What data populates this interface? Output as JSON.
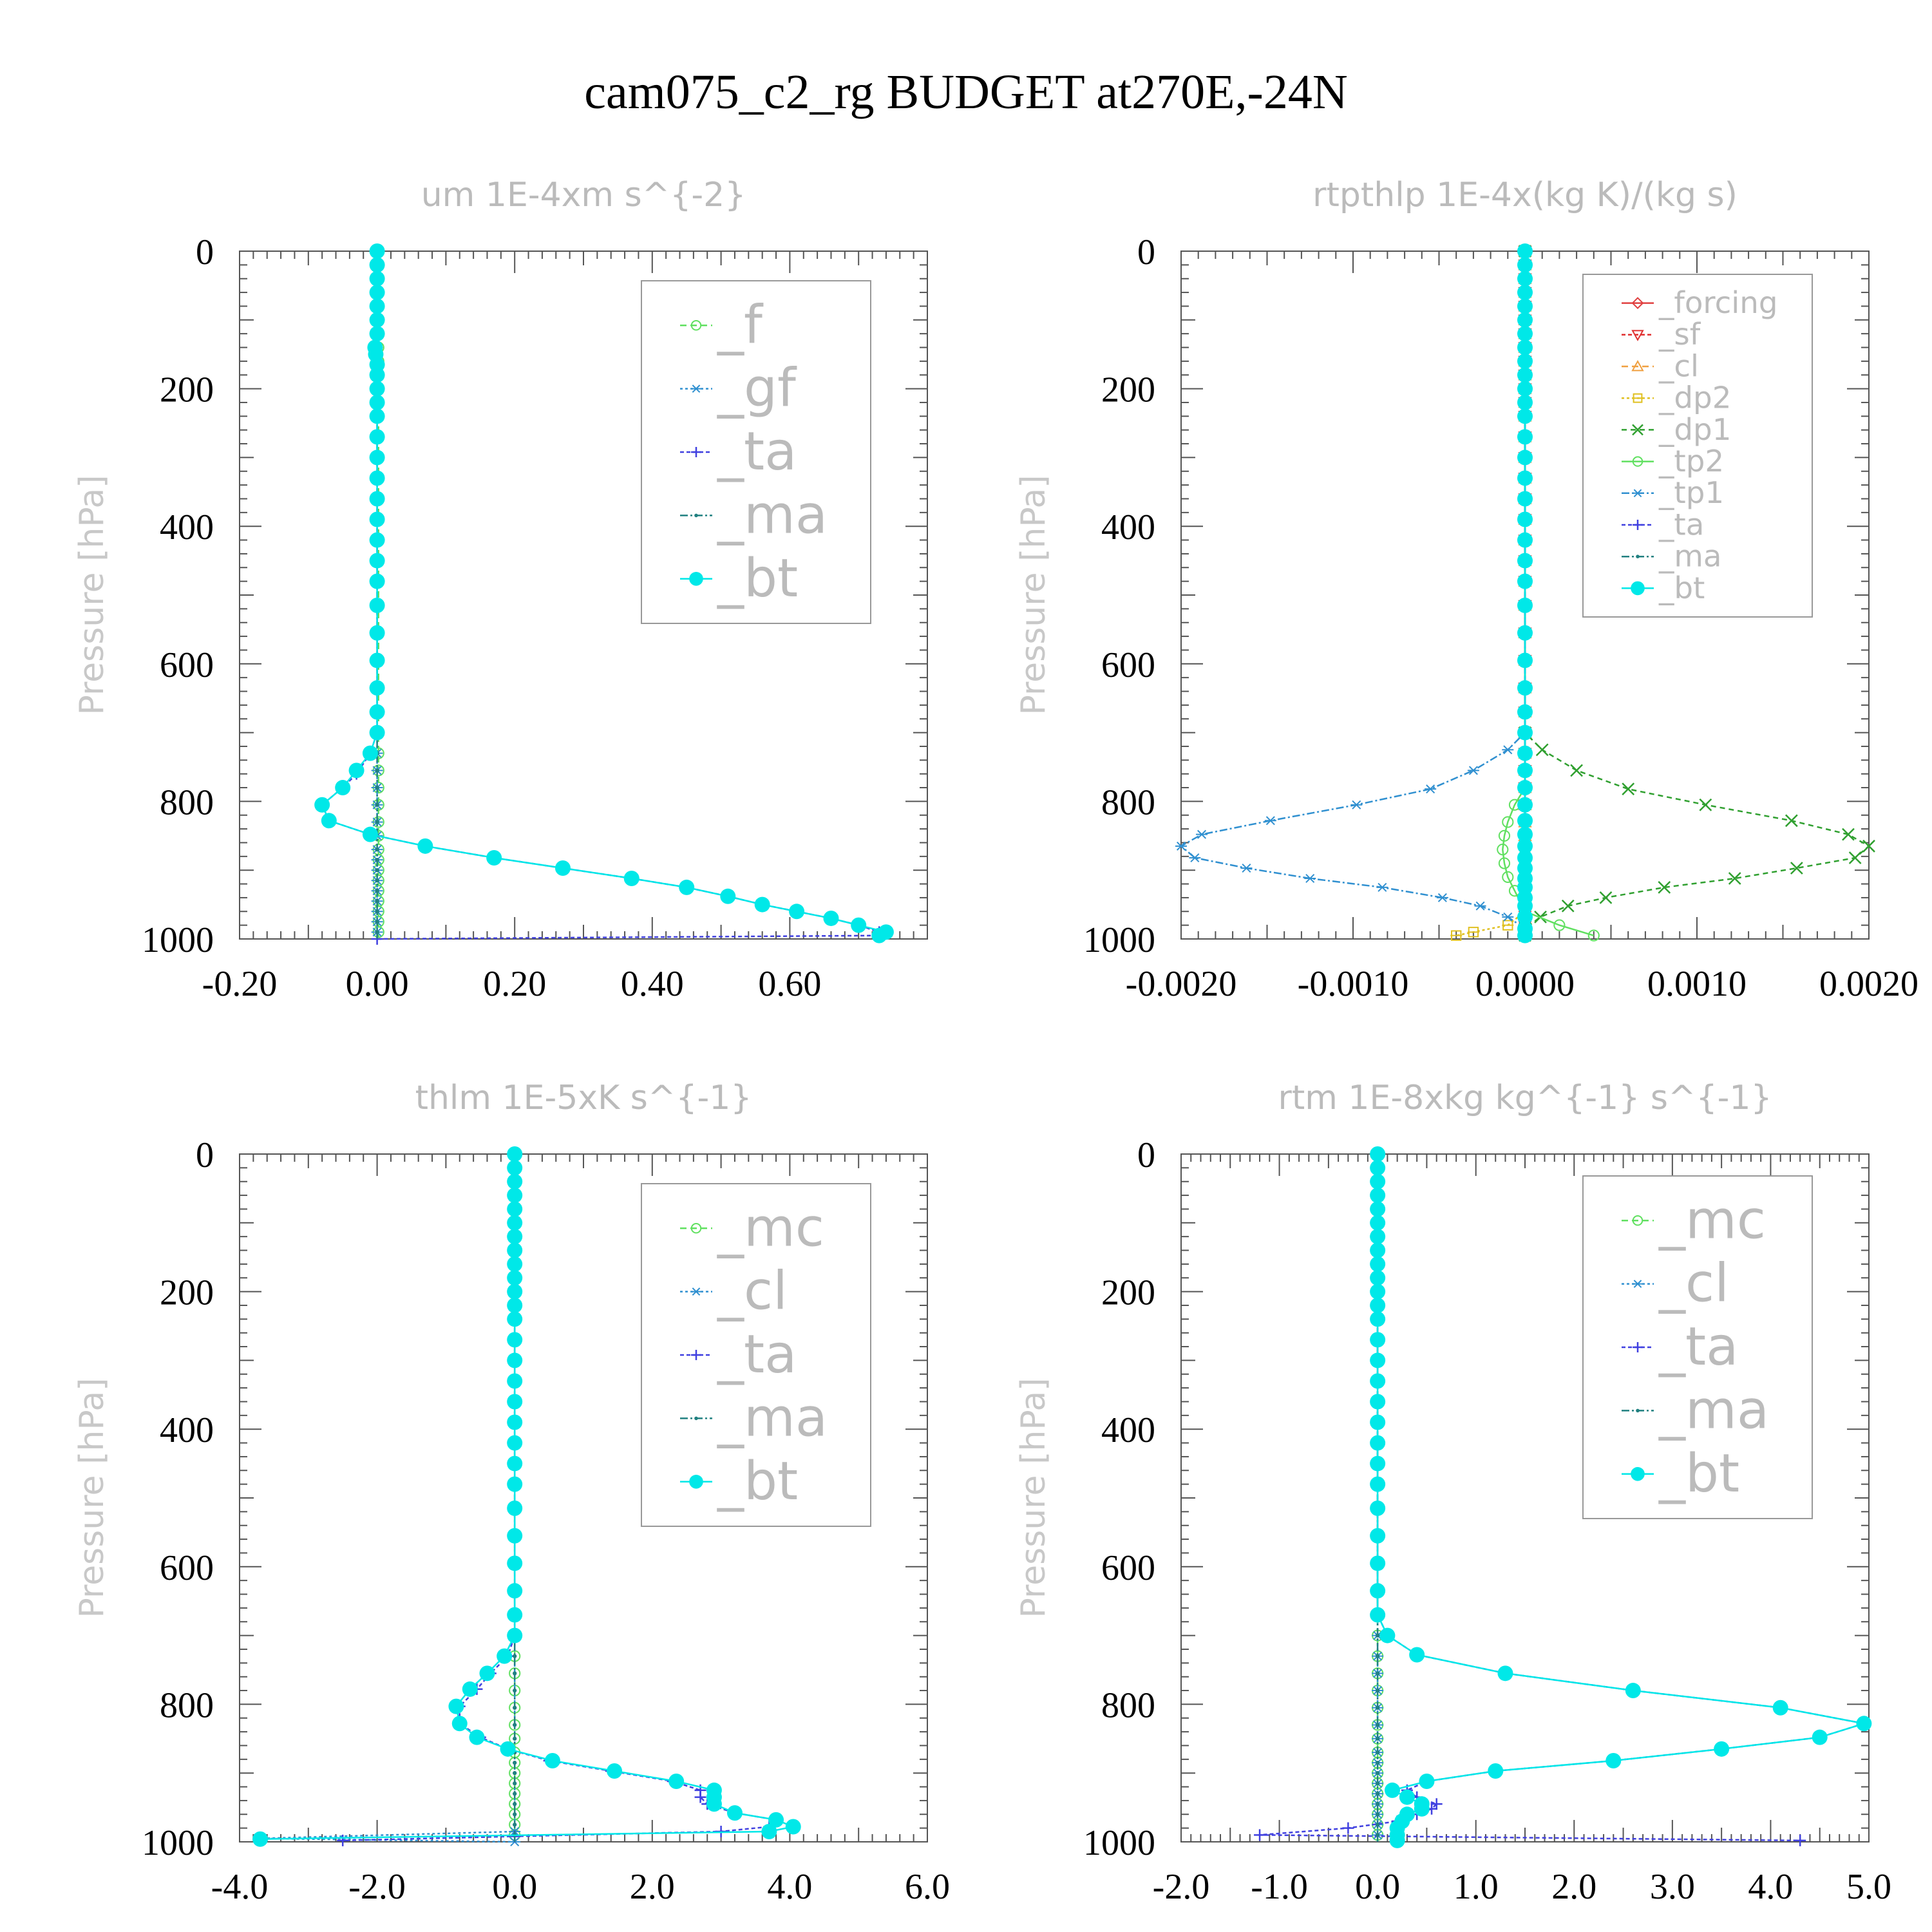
{
  "title": "cam075_c2_rg  BUDGET at270E,-24N",
  "colors": {
    "forcing": "#e04040",
    "sf": "#e03030",
    "cl_top": "#f0a040",
    "dp2": "#e0c020",
    "dp1": "#30a030",
    "tp2": "#60e060",
    "tp1": "#3090d0",
    "ta": "#4040e0",
    "ma": "#208080",
    "bt": "#00e8e8",
    "f": "#60e060",
    "gf": "#3090d0",
    "mc": "#60e060",
    "cl": "#3090d0"
  },
  "chart_data": [
    {
      "type": "line",
      "title": "um   1E-4xm s^{-2}",
      "ylabel": "Pressure [hPa]",
      "xlim": [
        -0.2,
        0.8
      ],
      "ylim": [
        1000,
        0
      ],
      "xticks": [
        "-0.20",
        "0.00",
        "0.20",
        "0.40",
        "0.60"
      ],
      "xtick_values": [
        -0.2,
        0.0,
        0.2,
        0.4,
        0.6
      ],
      "yticks": [
        "0",
        "200",
        "400",
        "600",
        "800",
        "1000"
      ],
      "legend_scale": 1.25,
      "series": [
        {
          "name": "_f",
          "key": "f",
          "marker": "circle",
          "dash": "10,6",
          "y": [
            0,
            1000
          ],
          "x": [
            0.002,
            0.002
          ]
        },
        {
          "name": "_gf",
          "key": "gf",
          "marker": "star",
          "dash": "4,4",
          "y": [
            0,
            1000
          ],
          "x": [
            0.0,
            0.0
          ]
        },
        {
          "name": "_ta",
          "key": "ta",
          "marker": "plus",
          "dash": "6,4",
          "y": [
            0,
            700,
            730,
            760,
            780,
            805,
            828,
            848,
            865,
            882,
            897,
            912,
            925,
            938,
            950,
            960,
            970,
            980,
            990,
            995,
            1000
          ],
          "x": [
            0.0,
            0.0,
            -0.01,
            -0.03,
            -0.05,
            -0.08,
            -0.07,
            -0.01,
            0.07,
            0.17,
            0.27,
            0.37,
            0.45,
            0.51,
            0.56,
            0.61,
            0.66,
            0.7,
            0.73,
            0.73,
            0.0
          ]
        },
        {
          "name": "_ma",
          "key": "ma",
          "marker": "dot",
          "dash": "12,4,3,4",
          "y": [
            0,
            1000
          ],
          "x": [
            0.0,
            0.0
          ]
        },
        {
          "name": "_bt",
          "key": "bt",
          "marker": "bigdot",
          "dash": "",
          "y": [
            0,
            20,
            40,
            60,
            80,
            100,
            120,
            140,
            150,
            165,
            180,
            200,
            220,
            240,
            270,
            300,
            330,
            360,
            390,
            420,
            450,
            480,
            515,
            555,
            595,
            635,
            670,
            700,
            730,
            755,
            780,
            805,
            828,
            848,
            865,
            882,
            897,
            912,
            925,
            938,
            950,
            960,
            970,
            980,
            990,
            995
          ],
          "x": [
            0.0,
            0.0,
            0.0,
            0.0,
            0.0,
            0.0,
            0.0,
            -0.003,
            -0.002,
            0.0,
            0.0,
            0.0,
            0.0,
            0.0,
            0.0,
            0.0,
            0.0,
            0.0,
            0.0,
            0.0,
            0.0,
            0.0,
            0.0,
            0.0,
            0.0,
            0.0,
            0.0,
            0.0,
            -0.01,
            -0.03,
            -0.05,
            -0.08,
            -0.07,
            -0.01,
            0.07,
            0.17,
            0.27,
            0.37,
            0.45,
            0.51,
            0.56,
            0.61,
            0.66,
            0.7,
            0.74,
            0.73
          ]
        }
      ]
    },
    {
      "type": "line",
      "title": "rtpthlp   1E-4x(kg K)/(kg s)",
      "ylabel": "Pressure [hPa]",
      "xlim": [
        -0.002,
        0.002
      ],
      "ylim": [
        1000,
        0
      ],
      "xticks": [
        "-0.0020",
        "-0.0010",
        "0.0000",
        "0.0010",
        "0.0020"
      ],
      "xtick_values": [
        -0.002,
        -0.001,
        0.0,
        0.001,
        0.002
      ],
      "yticks": [
        "0",
        "200",
        "400",
        "600",
        "800",
        "1000"
      ],
      "legend_scale": 0.85,
      "series": [
        {
          "name": "_forcing",
          "key": "forcing",
          "marker": "diamond",
          "dash": "",
          "y": [
            0,
            1000
          ],
          "x": [
            0.0,
            0.0
          ]
        },
        {
          "name": "_sf",
          "key": "sf",
          "marker": "tridown",
          "dash": "6,4",
          "y": [
            0,
            1000
          ],
          "x": [
            0.0,
            0.0
          ]
        },
        {
          "name": "_cl",
          "key": "cl_top",
          "marker": "triup",
          "dash": "10,6",
          "y": [
            0,
            1000
          ],
          "x": [
            0.0,
            0.0
          ]
        },
        {
          "name": "_dp2",
          "key": "dp2",
          "marker": "square",
          "dash": "4,4",
          "y": [
            0,
            960,
            980,
            990,
            995
          ],
          "x": [
            0.0,
            0.0,
            -0.0001,
            -0.0003,
            -0.0004
          ]
        },
        {
          "name": "_dp1",
          "key": "dp1",
          "marker": "cross",
          "dash": "8,6",
          "y": [
            0,
            700,
            725,
            755,
            782,
            805,
            828,
            848,
            865,
            882,
            897,
            912,
            925,
            940,
            952,
            968,
            985,
            995
          ],
          "x": [
            0.0,
            0.0,
            0.0001,
            0.0003,
            0.0006,
            0.00105,
            0.00155,
            0.00188,
            0.002,
            0.00192,
            0.00158,
            0.00122,
            0.00081,
            0.00047,
            0.00025,
            9e-05,
            0.0,
            0.0
          ]
        },
        {
          "name": "_tp2",
          "key": "tp2",
          "marker": "circle",
          "dash": "",
          "y": [
            0,
            780,
            805,
            830,
            850,
            870,
            890,
            910,
            930,
            960,
            980,
            995
          ],
          "x": [
            0.0,
            0.0,
            -6e-05,
            -0.0001,
            -0.00012,
            -0.00013,
            -0.00012,
            -0.0001,
            -6e-05,
            0.0,
            0.0002,
            0.0004
          ]
        },
        {
          "name": "_tp1",
          "key": "tp1",
          "marker": "star",
          "dash": "12,4,3,4",
          "y": [
            0,
            700,
            725,
            755,
            782,
            805,
            828,
            848,
            865,
            882,
            897,
            912,
            925,
            940,
            952,
            968,
            985,
            995
          ],
          "x": [
            0.0,
            0.0,
            -0.0001,
            -0.0003,
            -0.00055,
            -0.00098,
            -0.00148,
            -0.00188,
            -0.002,
            -0.00192,
            -0.00162,
            -0.00125,
            -0.00083,
            -0.00048,
            -0.00026,
            -0.0001,
            0.0,
            0.0
          ]
        },
        {
          "name": "_ta",
          "key": "ta",
          "marker": "plus",
          "dash": "6,4",
          "y": [
            0,
            1000
          ],
          "x": [
            0.0,
            0.0
          ]
        },
        {
          "name": "_ma",
          "key": "ma",
          "marker": "dot",
          "dash": "12,4,3,4",
          "y": [
            0,
            1000
          ],
          "x": [
            0.0,
            0.0
          ]
        },
        {
          "name": "_bt",
          "key": "bt",
          "marker": "bigdot",
          "dash": "",
          "y": [
            0,
            20,
            40,
            60,
            80,
            100,
            120,
            140,
            160,
            180,
            200,
            220,
            240,
            270,
            300,
            330,
            360,
            390,
            420,
            450,
            480,
            515,
            555,
            595,
            635,
            670,
            700,
            730,
            755,
            780,
            805,
            828,
            848,
            865,
            882,
            897,
            912,
            925,
            940,
            952,
            968,
            985,
            995
          ],
          "x": [
            0.0,
            0.0,
            0.0,
            0.0,
            0.0,
            0.0,
            0.0,
            0.0,
            0.0,
            0.0,
            0.0,
            0.0,
            0.0,
            0.0,
            0.0,
            0.0,
            0.0,
            0.0,
            0.0,
            0.0,
            0.0,
            0.0,
            0.0,
            0.0,
            0.0,
            0.0,
            0.0,
            0.0,
            0.0,
            0.0,
            0.0,
            0.0,
            0.0,
            0.0,
            0.0,
            0.0,
            0.0,
            0.0,
            0.0,
            0.0,
            0.0,
            0.0,
            0.0
          ]
        }
      ]
    },
    {
      "type": "line",
      "title": "thlm   1E-5xK s^{-1}",
      "ylabel": "Pressure [hPa]",
      "xlim": [
        -4.0,
        6.0
      ],
      "ylim": [
        1000,
        0
      ],
      "xticks": [
        "-4.0",
        "-2.0",
        "0.0",
        "2.0",
        "4.0",
        "6.0"
      ],
      "xtick_values": [
        -4.0,
        -2.0,
        0.0,
        2.0,
        4.0,
        6.0
      ],
      "yticks": [
        "0",
        "200",
        "400",
        "600",
        "800",
        "1000"
      ],
      "legend_scale": 1.25,
      "series": [
        {
          "name": "_mc",
          "key": "mc",
          "marker": "circle",
          "dash": "10,6",
          "y": [
            0,
            1000
          ],
          "x": [
            0.0,
            0.0
          ]
        },
        {
          "name": "_cl",
          "key": "cl",
          "marker": "star",
          "dash": "4,4",
          "y": [
            0,
            985,
            995,
            1000
          ],
          "x": [
            0.0,
            0.0,
            -3.7,
            0.0
          ]
        },
        {
          "name": "_ta",
          "key": "ta",
          "marker": "plus",
          "dash": "6,4",
          "y": [
            0,
            700,
            730,
            755,
            778,
            803,
            828,
            848,
            865,
            882,
            897,
            912,
            925,
            935,
            945,
            958,
            968,
            978,
            985,
            992,
            998
          ],
          "x": [
            0.0,
            0.0,
            -0.1,
            -0.35,
            -0.55,
            -0.8,
            -0.8,
            -0.5,
            -0.1,
            0.5,
            1.4,
            2.3,
            2.7,
            2.7,
            2.8,
            3.2,
            3.8,
            3.7,
            3.0,
            0.0,
            -2.5
          ]
        },
        {
          "name": "_ma",
          "key": "ma",
          "marker": "dot",
          "dash": "12,4,3,4",
          "y": [
            0,
            1000
          ],
          "x": [
            0.0,
            0.0
          ]
        },
        {
          "name": "_bt",
          "key": "bt",
          "marker": "bigdot",
          "dash": "",
          "y": [
            0,
            20,
            40,
            60,
            80,
            100,
            120,
            140,
            160,
            180,
            200,
            220,
            240,
            270,
            300,
            330,
            360,
            390,
            420,
            450,
            480,
            515,
            555,
            595,
            635,
            670,
            700,
            730,
            755,
            778,
            803,
            828,
            848,
            865,
            882,
            897,
            912,
            925,
            935,
            945,
            958,
            968,
            978,
            985,
            996
          ],
          "x": [
            0.0,
            0.0,
            0.0,
            0.0,
            0.0,
            0.0,
            0.0,
            0.0,
            0.0,
            0.0,
            0.0,
            0.0,
            0.0,
            0.0,
            0.0,
            0.0,
            0.0,
            0.0,
            0.0,
            0.0,
            0.0,
            0.0,
            0.0,
            0.0,
            0.0,
            0.0,
            0.0,
            -0.15,
            -0.4,
            -0.65,
            -0.85,
            -0.8,
            -0.55,
            -0.1,
            0.55,
            1.45,
            2.35,
            2.9,
            2.9,
            2.9,
            3.2,
            3.8,
            4.05,
            3.7,
            -3.7
          ]
        }
      ]
    },
    {
      "type": "line",
      "title": "rtm   1E-8xkg kg^{-1} s^{-1}",
      "ylabel": "Pressure [hPa]",
      "xlim": [
        -2.0,
        5.0
      ],
      "ylim": [
        1000,
        0
      ],
      "xticks": [
        "-2.0",
        "-1.0",
        "0.0",
        "1.0",
        "2.0",
        "3.0",
        "4.0",
        "5.0"
      ],
      "xtick_values": [
        -2.0,
        -1.0,
        0.0,
        1.0,
        2.0,
        3.0,
        4.0,
        5.0
      ],
      "yticks": [
        "0",
        "200",
        "400",
        "600",
        "800",
        "1000"
      ],
      "legend_scale": 1.25,
      "series": [
        {
          "name": "_mc",
          "key": "mc",
          "marker": "circle",
          "dash": "10,6",
          "y": [
            0,
            1000
          ],
          "x": [
            0.0,
            0.0
          ]
        },
        {
          "name": "_cl",
          "key": "cl",
          "marker": "star",
          "dash": "4,4",
          "y": [
            0,
            1000
          ],
          "x": [
            0.0,
            0.0
          ]
        },
        {
          "name": "_ta",
          "key": "ta",
          "marker": "plus",
          "dash": "6,4",
          "y": [
            0,
            670,
            700,
            728,
            755,
            780,
            805,
            828,
            848,
            865,
            882,
            897,
            912,
            925,
            935,
            945,
            952,
            960,
            970,
            980,
            990,
            998
          ],
          "x": [
            0.0,
            0.0,
            0.1,
            0.4,
            1.3,
            2.6,
            4.1,
            4.95,
            4.5,
            3.5,
            2.4,
            1.2,
            0.5,
            0.3,
            0.4,
            0.6,
            0.55,
            0.4,
            0.2,
            -0.3,
            -1.2,
            4.3
          ]
        },
        {
          "name": "_ma",
          "key": "ma",
          "marker": "dot",
          "dash": "12,4,3,4",
          "y": [
            0,
            1000
          ],
          "x": [
            0.0,
            0.0
          ]
        },
        {
          "name": "_bt",
          "key": "bt",
          "marker": "bigdot",
          "dash": "",
          "y": [
            0,
            20,
            40,
            60,
            80,
            100,
            120,
            140,
            160,
            180,
            200,
            220,
            240,
            270,
            300,
            330,
            360,
            390,
            420,
            450,
            480,
            515,
            555,
            595,
            635,
            670,
            700,
            728,
            755,
            780,
            805,
            828,
            848,
            865,
            882,
            897,
            912,
            925,
            935,
            945,
            952,
            960,
            970,
            980,
            990,
            998
          ],
          "x": [
            0.0,
            0.0,
            0.0,
            0.0,
            0.0,
            0.0,
            0.0,
            0.0,
            0.0,
            0.0,
            0.0,
            0.0,
            0.0,
            0.0,
            0.0,
            0.0,
            0.0,
            0.0,
            0.0,
            0.0,
            0.0,
            0.0,
            0.0,
            0.0,
            0.0,
            0.0,
            0.1,
            0.4,
            1.3,
            2.6,
            4.1,
            4.95,
            4.5,
            3.5,
            2.4,
            1.2,
            0.5,
            0.15,
            0.3,
            0.45,
            0.45,
            0.3,
            0.25,
            0.2,
            0.2,
            0.2
          ]
        }
      ]
    }
  ]
}
